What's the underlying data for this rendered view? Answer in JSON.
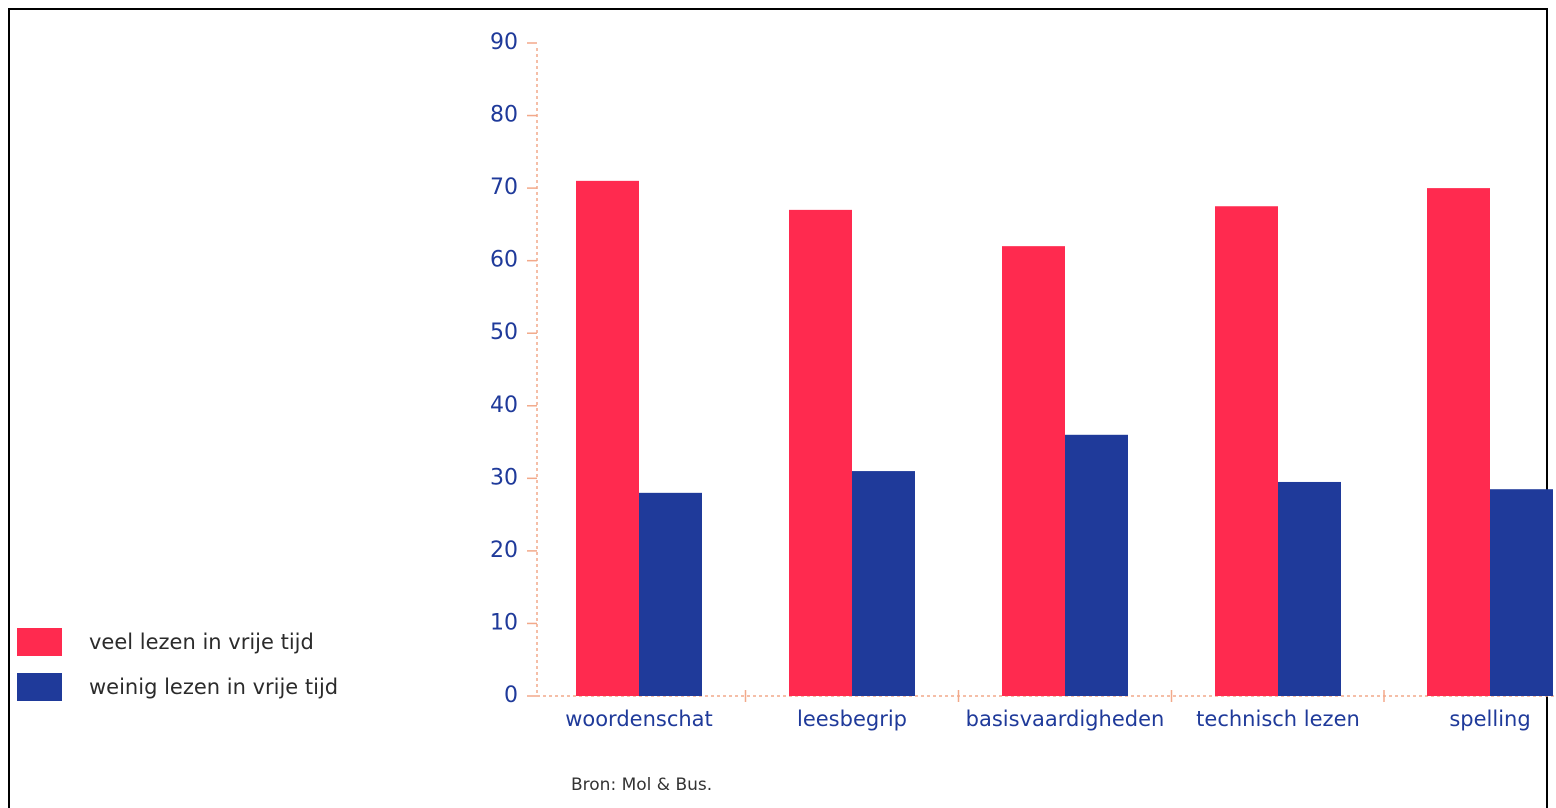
{
  "chart_data": {
    "type": "bar",
    "categories": [
      "woordenschat",
      "leesbegrip",
      "basisvaardigheden",
      "technisch lezen",
      "spelling"
    ],
    "series": [
      {
        "name": "veel lezen in vrije tijd",
        "color": "#ff2a4f",
        "values": [
          71,
          67,
          62,
          67.5,
          70
        ]
      },
      {
        "name": "weinig lezen in vrije tijd",
        "color": "#1f3a9a",
        "values": [
          28,
          31,
          36,
          29.5,
          28.5
        ]
      }
    ],
    "ylim": [
      0,
      90
    ],
    "yticks": [
      "0",
      "10",
      "20",
      "30",
      "40",
      "50",
      "60",
      "70",
      "80",
      "90"
    ],
    "axis_color": "#f2a98a",
    "tick_label_color": "#1f3a9a",
    "category_label_color": "#1f3a9a"
  },
  "legend": {
    "items": [
      {
        "label": "veel lezen in vrije tijd",
        "color": "#ff2a4f"
      },
      {
        "label": "weinig lezen in vrije tijd",
        "color": "#1f3a9a"
      }
    ]
  },
  "source": "Bron: Mol & Bus."
}
